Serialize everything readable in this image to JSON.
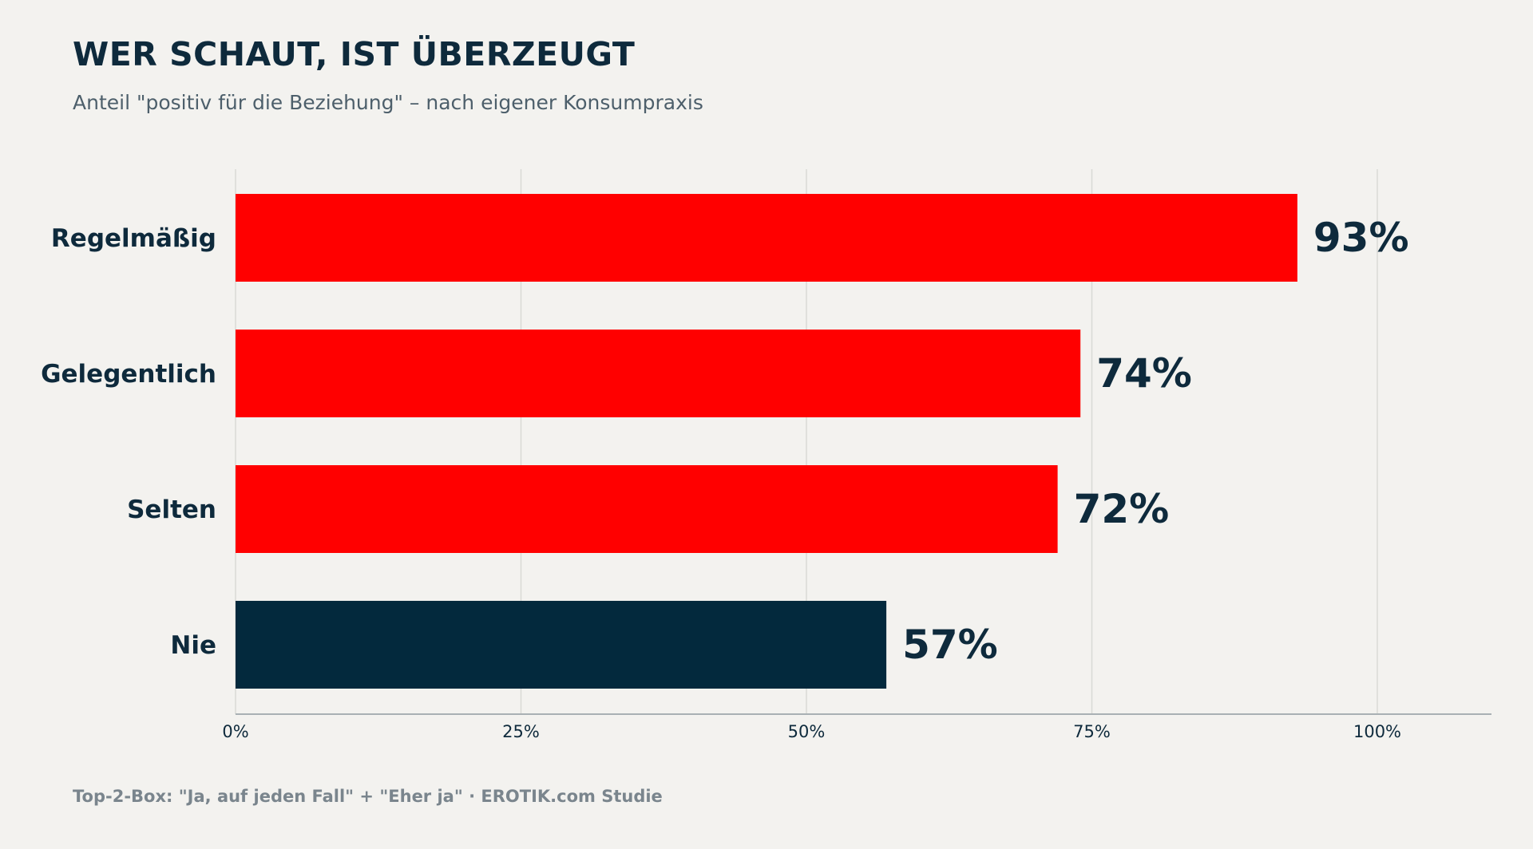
{
  "title": "WER SCHAUT, IST ÜBERZEUGT",
  "subtitle": "Anteil \"positiv für die Beziehung\" – nach eigener Konsumpraxis",
  "footnote": "Top-2-Box: \"Ja, auf jeden Fall\" + \"Eher ja\"  ·  EROTIK.com Studie",
  "colors": {
    "highlight": "#ff0000",
    "baseline": "#03293d",
    "text": "#0e2a3c",
    "grid": "#d9d9d6",
    "background": "#f3f2ef"
  },
  "chart_data": {
    "type": "bar",
    "orientation": "horizontal",
    "categories": [
      "Regelmäßig",
      "Gelegentlich",
      "Selten",
      "Nie"
    ],
    "values": [
      93,
      74,
      72,
      57
    ],
    "value_labels": [
      "93%",
      "74%",
      "72%",
      "57%"
    ],
    "bar_colors": [
      "#ff0000",
      "#ff0000",
      "#ff0000",
      "#03293d"
    ],
    "xlim": [
      0,
      110
    ],
    "xticks": [
      0,
      25,
      50,
      75,
      100
    ],
    "xtick_labels": [
      "0%",
      "25%",
      "50%",
      "75%",
      "100%"
    ],
    "grid": true,
    "xlabel": "",
    "ylabel": ""
  }
}
